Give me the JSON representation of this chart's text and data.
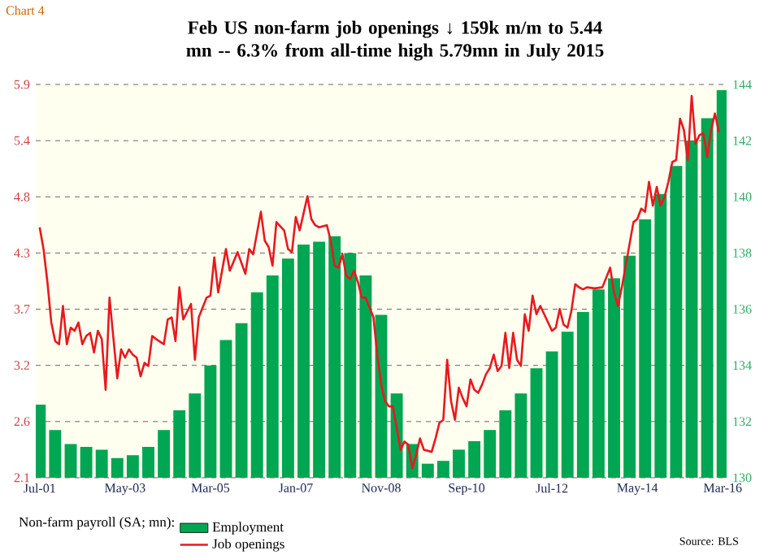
{
  "chart_data": {
    "type": "bar",
    "title": "Feb US non-farm job openings ↓ 159k m/m to 5.44 mn -- 6.3% from all-time high 5.79mn in July 2015",
    "legend_title": "Non-farm payroll (SA; mn):",
    "annotations": [
      "Chart 4",
      "Source: BLS"
    ],
    "xlim": [
      "2001-06",
      "2016-04"
    ],
    "xticks": [
      {
        "value": "2001-07",
        "label": "Jul-01"
      },
      {
        "value": "2003-05",
        "label": "May-03"
      },
      {
        "value": "2005-03",
        "label": "Mar-05"
      },
      {
        "value": "2007-01",
        "label": "Jan-07"
      },
      {
        "value": "2008-11",
        "label": "Nov-08"
      },
      {
        "value": "2010-09",
        "label": "Sep-10"
      },
      {
        "value": "2012-07",
        "label": "Jul-12"
      },
      {
        "value": "2014-05",
        "label": "May-14"
      },
      {
        "value": "2016-03",
        "label": "Mar-16"
      }
    ],
    "ylim": [
      2.1,
      5.9
    ],
    "yticks": [
      2.1,
      {
        "value": 2.643,
        "label": "2.6"
      },
      {
        "value": 3.186,
        "label": "3.2"
      },
      {
        "value": 3.729,
        "label": "3.7"
      },
      {
        "value": 4.271,
        "label": "4.3"
      },
      {
        "value": 4.814,
        "label": "4.8"
      },
      {
        "value": 5.357,
        "label": "5.4"
      },
      5.9
    ],
    "y2lim": [
      130,
      144
    ],
    "y2ticks": [
      130,
      132,
      134,
      136,
      138,
      140,
      142,
      144
    ],
    "grid": "y",
    "legend": "bottom",
    "series": [
      {
        "name": "Employment",
        "axis": "y2",
        "color": "#00a651",
        "x": [
          "2001-07",
          "2001-11",
          "2002-03",
          "2002-07",
          "2002-11",
          "2003-03",
          "2003-07",
          "2003-11",
          "2004-03",
          "2004-07",
          "2004-11",
          "2005-03",
          "2005-07",
          "2005-11",
          "2006-03",
          "2006-07",
          "2006-11",
          "2007-03",
          "2007-07",
          "2007-11",
          "2008-03",
          "2008-07",
          "2008-11",
          "2009-03",
          "2009-07",
          "2009-11",
          "2010-03",
          "2010-07",
          "2010-11",
          "2011-03",
          "2011-07",
          "2011-11",
          "2012-03",
          "2012-07",
          "2012-11",
          "2013-03",
          "2013-07",
          "2013-11",
          "2014-03",
          "2014-07",
          "2014-11",
          "2015-03",
          "2015-07",
          "2015-11",
          "2016-03"
        ],
        "values": [
          132.6,
          131.7,
          131.2,
          131.1,
          131.0,
          130.7,
          130.8,
          131.1,
          131.7,
          132.4,
          133.0,
          134.0,
          134.9,
          135.5,
          136.6,
          137.2,
          137.8,
          138.3,
          138.4,
          138.6,
          138.0,
          137.2,
          135.8,
          133.0,
          131.2,
          130.5,
          130.6,
          131.0,
          131.3,
          131.7,
          132.4,
          133.0,
          133.9,
          134.5,
          135.2,
          135.9,
          136.7,
          137.1,
          137.9,
          139.2,
          140.1,
          141.1,
          142.0,
          142.8,
          143.8
        ]
      },
      {
        "name": "Job openings",
        "type": "line",
        "color": "#e8191f",
        "x": [
          "2001-07",
          "2001-08",
          "2001-09",
          "2001-10",
          "2001-11",
          "2001-12",
          "2002-01",
          "2002-02",
          "2002-03",
          "2002-04",
          "2002-05",
          "2002-06",
          "2002-07",
          "2002-08",
          "2002-09",
          "2002-10",
          "2002-11",
          "2002-12",
          "2003-01",
          "2003-03",
          "2003-04",
          "2003-05",
          "2003-06",
          "2003-07",
          "2003-08",
          "2003-09",
          "2003-10",
          "2003-11",
          "2003-12",
          "2004-01",
          "2004-03",
          "2004-04",
          "2004-05",
          "2004-06",
          "2004-07",
          "2004-08",
          "2004-10",
          "2004-11",
          "2004-12",
          "2005-02",
          "2005-03",
          "2005-04",
          "2005-05",
          "2005-07",
          "2005-08",
          "2005-10",
          "2005-12",
          "2006-01",
          "2006-02",
          "2006-04",
          "2006-05",
          "2006-06",
          "2006-07",
          "2006-08",
          "2006-10",
          "2006-11",
          "2006-12",
          "2007-01",
          "2007-02",
          "2007-04",
          "2007-05",
          "2007-06",
          "2007-07",
          "2007-09",
          "2007-10",
          "2007-11",
          "2007-12",
          "2008-01",
          "2008-02",
          "2008-03",
          "2008-04",
          "2008-05",
          "2008-06",
          "2008-07",
          "2008-09",
          "2008-10",
          "2008-11",
          "2008-12",
          "2009-01",
          "2009-02",
          "2009-03",
          "2009-04",
          "2009-05",
          "2009-06",
          "2009-07",
          "2009-08",
          "2009-09",
          "2009-10",
          "2009-12",
          "2010-01",
          "2010-02",
          "2010-03",
          "2010-04",
          "2010-05",
          "2010-06",
          "2010-07",
          "2010-08",
          "2010-09",
          "2010-10",
          "2010-11",
          "2010-12",
          "2011-01",
          "2011-02",
          "2011-03",
          "2011-04",
          "2011-05",
          "2011-06",
          "2011-07",
          "2011-08",
          "2011-09",
          "2011-10",
          "2011-11",
          "2011-12",
          "2012-01",
          "2012-02",
          "2012-03",
          "2012-04",
          "2012-05",
          "2012-07",
          "2012-08",
          "2012-09",
          "2012-10",
          "2012-11",
          "2012-12",
          "2013-01",
          "2013-02",
          "2013-03",
          "2013-04",
          "2013-06",
          "2013-08",
          "2013-10",
          "2013-11",
          "2013-12",
          "2014-01",
          "2014-02",
          "2014-04",
          "2014-05",
          "2014-06",
          "2014-07",
          "2014-08",
          "2014-09",
          "2014-10",
          "2014-11",
          "2014-12",
          "2015-01",
          "2015-02",
          "2015-03",
          "2015-04",
          "2015-05",
          "2015-06",
          "2015-07",
          "2015-08",
          "2015-09",
          "2015-10",
          "2015-11",
          "2015-12",
          "2016-01",
          "2016-02"
        ],
        "values": [
          4.52,
          4.31,
          3.99,
          3.6,
          3.42,
          3.39,
          3.76,
          3.39,
          3.55,
          3.52,
          3.6,
          3.39,
          3.47,
          3.5,
          3.31,
          3.52,
          3.44,
          2.95,
          3.84,
          3.06,
          3.34,
          3.26,
          3.34,
          3.29,
          3.26,
          3.08,
          3.21,
          3.18,
          3.47,
          3.44,
          3.39,
          3.63,
          3.65,
          3.42,
          3.94,
          3.63,
          3.78,
          3.24,
          3.65,
          3.84,
          3.86,
          4.23,
          3.89,
          4.31,
          4.1,
          4.28,
          4.07,
          4.31,
          4.26,
          4.67,
          4.39,
          4.33,
          4.15,
          4.57,
          4.49,
          4.31,
          4.28,
          4.62,
          4.49,
          4.82,
          4.6,
          4.54,
          4.52,
          4.54,
          4.39,
          4.15,
          4.13,
          4.26,
          4.05,
          4.02,
          4.1,
          3.99,
          3.84,
          3.84,
          3.65,
          3.29,
          3.0,
          2.84,
          2.79,
          2.79,
          2.58,
          2.37,
          2.45,
          2.42,
          2.19,
          2.32,
          2.48,
          2.37,
          2.35,
          2.48,
          2.63,
          2.66,
          3.24,
          2.84,
          2.66,
          2.97,
          2.87,
          2.79,
          3.05,
          2.95,
          2.92,
          3.0,
          3.1,
          3.16,
          3.29,
          3.13,
          3.18,
          3.5,
          3.16,
          3.5,
          3.24,
          3.18,
          3.68,
          3.52,
          3.86,
          3.68,
          3.76,
          3.68,
          3.52,
          3.55,
          3.73,
          3.58,
          3.55,
          3.71,
          3.97,
          3.94,
          3.92,
          3.94,
          3.93,
          3.94,
          4.13,
          3.89,
          3.76,
          3.94,
          4.15,
          4.57,
          4.6,
          4.7,
          4.67,
          4.96,
          4.73,
          4.91,
          4.73,
          4.81,
          4.96,
          5.15,
          5.17,
          5.57,
          5.46,
          5.17,
          5.79,
          5.33,
          5.41,
          5.43,
          5.2,
          5.46,
          5.62,
          5.44
        ]
      }
    ]
  }
}
